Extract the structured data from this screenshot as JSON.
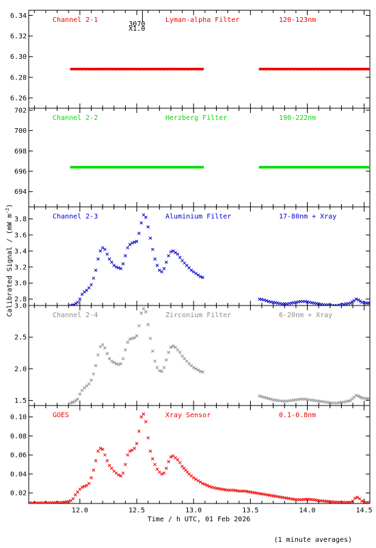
{
  "figure": {
    "ylabel": "Calibrated Signal / (mW m",
    "ylabel_sup": "-2",
    "ylabel_end": ")",
    "xlabel": "Time / h UTC, 01 Feb 2026",
    "footnote": "(1 minute averages)",
    "marker_text_1": "3070",
    "marker_text_2": "X1.0",
    "marker_x": 12.55
  },
  "chart_data": [
    {
      "type": "scatter",
      "name": "Channel 2-1",
      "filter": "Lyman-alpha Filter",
      "band": "120-123nm",
      "color": "#ee0000",
      "marker": "dot",
      "xlim": [
        11.55,
        14.55
      ],
      "ylim": [
        6.25,
        6.345
      ],
      "yticks": [
        6.26,
        6.28,
        6.3,
        6.32,
        6.34
      ],
      "ytick_labels": [
        "6.26",
        "6.28",
        "6.30",
        "6.32",
        "6.34"
      ],
      "segments": [
        {
          "x_start": 11.92,
          "x_end": 13.08,
          "y": 6.288
        },
        {
          "x_start": 13.58,
          "x_end": 14.55,
          "y": 6.288
        }
      ]
    },
    {
      "type": "scatter",
      "name": "Channel 2-2",
      "filter": "Herzberg Filter",
      "band": "190-222nm",
      "color": "#00dd00",
      "marker": "dot",
      "xlim": [
        11.55,
        14.55
      ],
      "ylim": [
        692.5,
        702.2
      ],
      "yticks": [
        694,
        696,
        698,
        700,
        702
      ],
      "ytick_labels": [
        "694",
        "696",
        "698",
        "700",
        "702"
      ],
      "segments": [
        {
          "x_start": 11.92,
          "x_end": 13.08,
          "y": 696.4
        },
        {
          "x_start": 13.58,
          "x_end": 14.55,
          "y": 696.4
        }
      ]
    },
    {
      "type": "scatter",
      "name": "Channel 2-3",
      "filter": "Aluminium Filter",
      "band": "17-80nm + Xray",
      "color": "#0000cc",
      "marker": "asterisk",
      "xlim": [
        11.55,
        14.55
      ],
      "ylim": [
        2.72,
        3.95
      ],
      "yticks": [
        2.8,
        3.0,
        3.2,
        3.4,
        3.6,
        3.8
      ],
      "ytick_labels": [
        "2.8",
        "3.0",
        "3.2",
        "3.4",
        "3.6",
        "3.8"
      ],
      "x": [
        11.92,
        11.95,
        11.98,
        12.0,
        12.02,
        12.04,
        12.06,
        12.08,
        12.1,
        12.12,
        12.14,
        12.16,
        12.18,
        12.2,
        12.22,
        12.24,
        12.26,
        12.28,
        12.3,
        12.32,
        12.34,
        12.36,
        12.38,
        12.4,
        12.42,
        12.44,
        12.46,
        12.48,
        12.5,
        12.52,
        12.54,
        12.56,
        12.58,
        12.6,
        12.62,
        12.64,
        12.66,
        12.68,
        12.7,
        12.72,
        12.74,
        12.76,
        12.78,
        12.8,
        12.82,
        12.84,
        12.86,
        12.88,
        12.9,
        12.92,
        12.94,
        12.96,
        12.98,
        13.0,
        13.02,
        13.04,
        13.06,
        13.08,
        13.58,
        13.62,
        13.66,
        13.7,
        13.74,
        13.78,
        13.82,
        13.86,
        13.9,
        13.94,
        13.98,
        14.02,
        14.06,
        14.1,
        14.14,
        14.18,
        14.22,
        14.26,
        14.3,
        14.34,
        14.38,
        14.41,
        14.43,
        14.45,
        14.48,
        14.52,
        14.55
      ],
      "y": [
        2.72,
        2.73,
        2.76,
        2.8,
        2.86,
        2.89,
        2.91,
        2.94,
        2.98,
        3.06,
        3.16,
        3.3,
        3.4,
        3.44,
        3.42,
        3.36,
        3.3,
        3.26,
        3.22,
        3.2,
        3.19,
        3.18,
        3.24,
        3.34,
        3.44,
        3.48,
        3.5,
        3.51,
        3.52,
        3.62,
        3.75,
        3.85,
        3.82,
        3.7,
        3.56,
        3.42,
        3.3,
        3.22,
        3.16,
        3.14,
        3.18,
        3.26,
        3.34,
        3.39,
        3.4,
        3.38,
        3.36,
        3.32,
        3.28,
        3.25,
        3.22,
        3.19,
        3.16,
        3.14,
        3.12,
        3.1,
        3.08,
        3.07,
        2.8,
        2.79,
        2.77,
        2.76,
        2.75,
        2.74,
        2.74,
        2.75,
        2.76,
        2.77,
        2.77,
        2.76,
        2.75,
        2.74,
        2.73,
        2.73,
        2.72,
        2.72,
        2.73,
        2.74,
        2.75,
        2.78,
        2.8,
        2.79,
        2.76,
        2.75,
        2.75
      ]
    },
    {
      "type": "scatter",
      "name": "Channel 2-4",
      "filter": "Zirconium Filter",
      "band": "6-20nm + Xray",
      "color": "#8c8c8c",
      "marker": "asterisk",
      "xlim": [
        11.55,
        14.55
      ],
      "ylim": [
        1.42,
        3.0
      ],
      "yticks": [
        1.5,
        2.0,
        2.5,
        3.0
      ],
      "ytick_labels": [
        "1.5",
        "2.0",
        "2.5",
        "3.0"
      ],
      "x": [
        11.92,
        11.95,
        11.98,
        12.0,
        12.02,
        12.04,
        12.06,
        12.08,
        12.1,
        12.12,
        12.14,
        12.16,
        12.18,
        12.2,
        12.22,
        12.24,
        12.26,
        12.28,
        12.3,
        12.32,
        12.34,
        12.36,
        12.38,
        12.4,
        12.42,
        12.44,
        12.46,
        12.48,
        12.5,
        12.52,
        12.54,
        12.56,
        12.58,
        12.6,
        12.62,
        12.64,
        12.66,
        12.68,
        12.7,
        12.72,
        12.74,
        12.76,
        12.78,
        12.8,
        12.82,
        12.84,
        12.86,
        12.88,
        12.9,
        12.92,
        12.94,
        12.96,
        12.98,
        13.0,
        13.02,
        13.04,
        13.06,
        13.08,
        13.58,
        13.62,
        13.66,
        13.7,
        13.74,
        13.78,
        13.82,
        13.86,
        13.9,
        13.94,
        13.98,
        14.02,
        14.06,
        14.1,
        14.14,
        14.18,
        14.22,
        14.26,
        14.3,
        14.34,
        14.38,
        14.41,
        14.43,
        14.45,
        14.48,
        14.52,
        14.55
      ],
      "y": [
        1.46,
        1.48,
        1.52,
        1.6,
        1.66,
        1.7,
        1.73,
        1.76,
        1.82,
        1.92,
        2.05,
        2.22,
        2.35,
        2.38,
        2.33,
        2.24,
        2.16,
        2.12,
        2.1,
        2.08,
        2.07,
        2.08,
        2.16,
        2.3,
        2.42,
        2.47,
        2.48,
        2.49,
        2.52,
        2.68,
        2.88,
        2.95,
        2.9,
        2.7,
        2.48,
        2.28,
        2.12,
        2.02,
        1.97,
        1.96,
        2.02,
        2.14,
        2.26,
        2.34,
        2.36,
        2.34,
        2.3,
        2.26,
        2.2,
        2.16,
        2.12,
        2.08,
        2.05,
        2.02,
        2.0,
        1.98,
        1.96,
        1.95,
        1.57,
        1.55,
        1.53,
        1.51,
        1.5,
        1.49,
        1.49,
        1.5,
        1.51,
        1.52,
        1.52,
        1.51,
        1.5,
        1.49,
        1.48,
        1.47,
        1.46,
        1.46,
        1.47,
        1.48,
        1.5,
        1.55,
        1.58,
        1.57,
        1.54,
        1.53,
        1.52
      ]
    },
    {
      "type": "scatter",
      "name": "GOES",
      "filter": "Xray Sensor",
      "band": "0.1-0.8nm",
      "color": "#ee0000",
      "marker": "asterisk",
      "xlim": [
        11.55,
        14.55
      ],
      "ylim": [
        0.009,
        0.112
      ],
      "yticks": [
        0.02,
        0.04,
        0.06,
        0.08,
        0.1
      ],
      "ytick_labels": [
        "0.02",
        "0.04",
        "0.06",
        "0.08",
        "0.10"
      ],
      "x": [
        11.55,
        11.6,
        11.65,
        11.7,
        11.75,
        11.8,
        11.85,
        11.88,
        11.9,
        11.92,
        11.94,
        11.96,
        11.98,
        12.0,
        12.02,
        12.04,
        12.06,
        12.08,
        12.1,
        12.12,
        12.14,
        12.16,
        12.18,
        12.2,
        12.22,
        12.24,
        12.26,
        12.28,
        12.3,
        12.32,
        12.34,
        12.36,
        12.38,
        12.4,
        12.42,
        12.44,
        12.46,
        12.48,
        12.5,
        12.52,
        12.54,
        12.56,
        12.58,
        12.6,
        12.62,
        12.64,
        12.66,
        12.68,
        12.7,
        12.72,
        12.74,
        12.76,
        12.78,
        12.8,
        12.82,
        12.84,
        12.86,
        12.88,
        12.9,
        12.93,
        12.96,
        13.0,
        13.04,
        13.08,
        13.12,
        13.16,
        13.2,
        13.25,
        13.3,
        13.35,
        13.4,
        13.45,
        13.5,
        13.55,
        13.6,
        13.65,
        13.7,
        13.75,
        13.8,
        13.85,
        13.9,
        13.95,
        14.0,
        14.05,
        14.1,
        14.15,
        14.2,
        14.25,
        14.3,
        14.35,
        14.38,
        14.4,
        14.42,
        14.44,
        14.46,
        14.48,
        14.5,
        14.55
      ],
      "y": [
        0.0095,
        0.0095,
        0.0096,
        0.0097,
        0.0098,
        0.0099,
        0.0101,
        0.0106,
        0.0112,
        0.012,
        0.014,
        0.018,
        0.021,
        0.024,
        0.026,
        0.027,
        0.028,
        0.03,
        0.036,
        0.044,
        0.054,
        0.064,
        0.067,
        0.066,
        0.06,
        0.054,
        0.049,
        0.046,
        0.043,
        0.041,
        0.039,
        0.038,
        0.041,
        0.05,
        0.06,
        0.064,
        0.065,
        0.067,
        0.072,
        0.085,
        0.1,
        0.103,
        0.095,
        0.078,
        0.064,
        0.056,
        0.05,
        0.045,
        0.042,
        0.04,
        0.041,
        0.046,
        0.053,
        0.058,
        0.059,
        0.057,
        0.055,
        0.052,
        0.048,
        0.044,
        0.04,
        0.036,
        0.033,
        0.03,
        0.028,
        0.026,
        0.025,
        0.024,
        0.023,
        0.023,
        0.022,
        0.022,
        0.021,
        0.02,
        0.019,
        0.018,
        0.017,
        0.016,
        0.015,
        0.014,
        0.013,
        0.013,
        0.0135,
        0.013,
        0.012,
        0.0115,
        0.011,
        0.0105,
        0.0102,
        0.0101,
        0.0102,
        0.0115,
        0.0145,
        0.0155,
        0.014,
        0.0115,
        0.0102,
        0.0098
      ]
    }
  ]
}
